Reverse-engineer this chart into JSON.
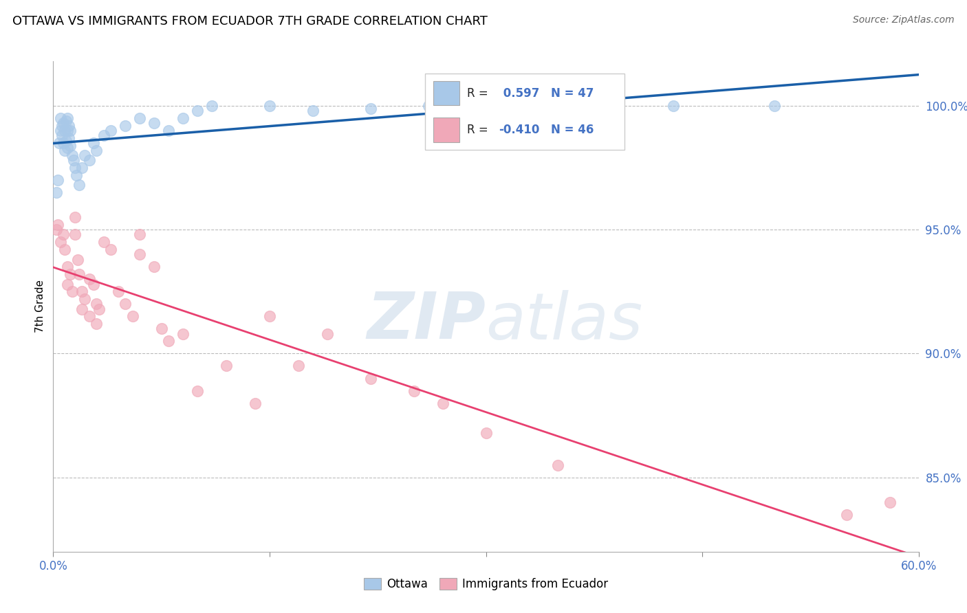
{
  "title": "OTTAWA VS IMMIGRANTS FROM ECUADOR 7TH GRADE CORRELATION CHART",
  "source": "Source: ZipAtlas.com",
  "ylabel": "7th Grade",
  "legend_label1": "Ottawa",
  "legend_label2": "Immigrants from Ecuador",
  "R1": 0.597,
  "N1": 47,
  "R2": -0.41,
  "N2": 46,
  "blue_color": "#A8C8E8",
  "blue_line_color": "#1A5FA8",
  "pink_color": "#F0A8B8",
  "pink_line_color": "#E84070",
  "watermark_zip": "ZIP",
  "watermark_atlas": "atlas",
  "xlim": [
    0.0,
    60.0
  ],
  "ylim": [
    82.0,
    101.8
  ],
  "yticks": [
    85.0,
    90.0,
    95.0,
    100.0
  ],
  "xticks": [
    0.0,
    15.0,
    30.0,
    45.0,
    60.0
  ],
  "blue_x": [
    0.2,
    0.3,
    0.4,
    0.5,
    0.5,
    0.6,
    0.6,
    0.7,
    0.7,
    0.8,
    0.8,
    0.9,
    0.9,
    1.0,
    1.0,
    1.0,
    1.1,
    1.1,
    1.2,
    1.2,
    1.3,
    1.4,
    1.5,
    1.6,
    1.8,
    2.0,
    2.2,
    2.5,
    2.8,
    3.0,
    3.5,
    4.0,
    5.0,
    6.0,
    7.0,
    8.0,
    9.0,
    10.0,
    11.0,
    15.0,
    18.0,
    22.0,
    26.0,
    33.0,
    35.0,
    43.0,
    50.0
  ],
  "blue_y": [
    96.5,
    97.0,
    98.5,
    99.0,
    99.5,
    99.2,
    98.8,
    99.3,
    98.5,
    99.0,
    98.2,
    99.4,
    98.6,
    99.5,
    99.0,
    98.3,
    99.2,
    98.7,
    99.0,
    98.4,
    98.0,
    97.8,
    97.5,
    97.2,
    96.8,
    97.5,
    98.0,
    97.8,
    98.5,
    98.2,
    98.8,
    99.0,
    99.2,
    99.5,
    99.3,
    99.0,
    99.5,
    99.8,
    100.0,
    100.0,
    99.8,
    99.9,
    100.0,
    100.0,
    100.0,
    100.0,
    100.0
  ],
  "pink_x": [
    0.2,
    0.3,
    0.5,
    0.7,
    0.8,
    1.0,
    1.0,
    1.2,
    1.3,
    1.5,
    1.5,
    1.7,
    1.8,
    2.0,
    2.0,
    2.2,
    2.5,
    2.5,
    2.8,
    3.0,
    3.0,
    3.2,
    3.5,
    4.0,
    4.5,
    5.0,
    5.5,
    6.0,
    6.0,
    7.0,
    7.5,
    8.0,
    9.0,
    10.0,
    12.0,
    14.0,
    15.0,
    17.0,
    19.0,
    22.0,
    25.0,
    27.0,
    30.0,
    35.0,
    55.0,
    58.0
  ],
  "pink_y": [
    95.0,
    95.2,
    94.5,
    94.8,
    94.2,
    93.5,
    92.8,
    93.2,
    92.5,
    95.5,
    94.8,
    93.8,
    93.2,
    92.5,
    91.8,
    92.2,
    93.0,
    91.5,
    92.8,
    92.0,
    91.2,
    91.8,
    94.5,
    94.2,
    92.5,
    92.0,
    91.5,
    94.8,
    94.0,
    93.5,
    91.0,
    90.5,
    90.8,
    88.5,
    89.5,
    88.0,
    91.5,
    89.5,
    90.8,
    89.0,
    88.5,
    88.0,
    86.8,
    85.5,
    83.5,
    84.0
  ]
}
